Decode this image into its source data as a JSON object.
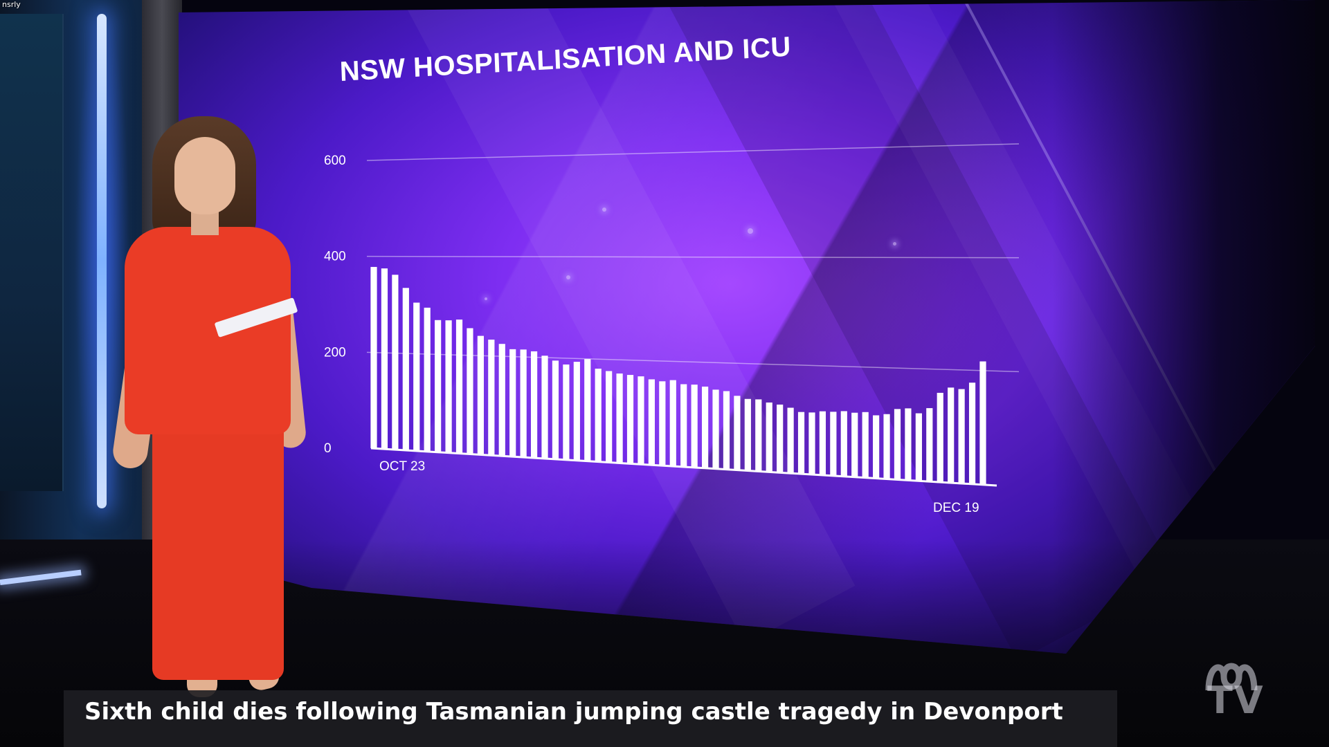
{
  "corner_tag": "nsrly",
  "headline": "Sixth child dies following Tasmanian jumping castle tragedy in Devonport",
  "channel": {
    "logo": "abc-logo-icon",
    "name": "TV"
  },
  "colors": {
    "wall_purple": "#7e2ef2",
    "bar_white": "#ffffff",
    "dress_red": "#ea3c26",
    "lower_third_bg": "#1e1e22"
  },
  "chart_data": {
    "type": "bar",
    "title": "NSW HOSPITALISATION AND ICU",
    "xlabel": "",
    "ylabel": "",
    "ylim": [
      0,
      600
    ],
    "yticks": [
      0,
      200,
      400,
      600
    ],
    "grid": true,
    "x_start_label": "OCT 23",
    "x_end_label": "DEC 19",
    "values": [
      378,
      375,
      362,
      335,
      305,
      295,
      270,
      270,
      272,
      255,
      240,
      233,
      225,
      215,
      215,
      212,
      204,
      195,
      188,
      194,
      200,
      182,
      178,
      174,
      172,
      170,
      165,
      162,
      165,
      158,
      158,
      155,
      150,
      148,
      140,
      135,
      135,
      130,
      127,
      122,
      115,
      115,
      118,
      118,
      120,
      118,
      120,
      115,
      118,
      128,
      130,
      122,
      132,
      160,
      170,
      168,
      180,
      218
    ]
  }
}
